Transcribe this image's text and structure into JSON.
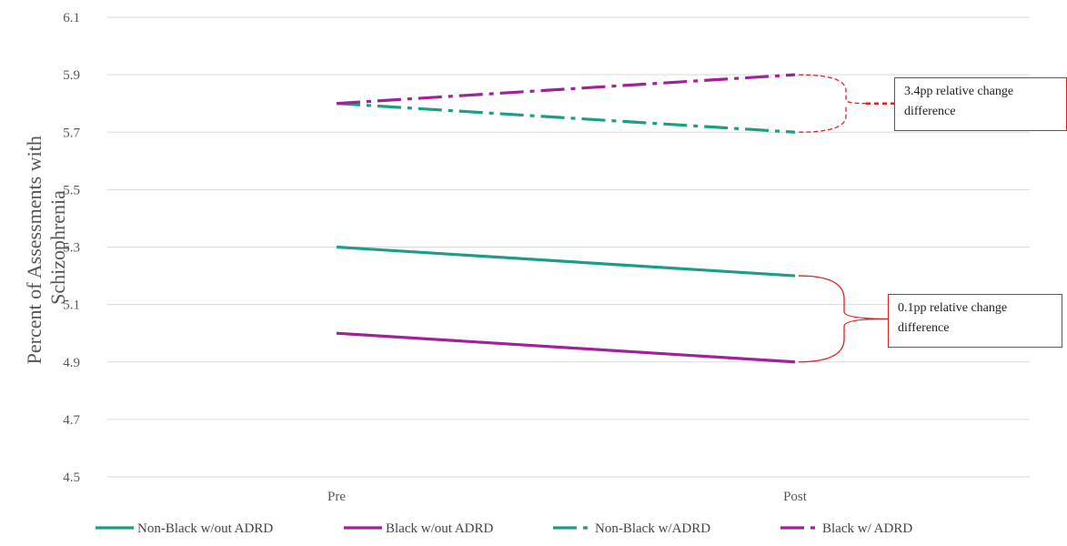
{
  "chart_data": {
    "type": "line",
    "categories": [
      "Pre",
      "Post"
    ],
    "ylabel": "Percent of Assessments with Schizophrenia",
    "ylabel_lines": [
      "Percent of Assessments with",
      "Schizophrenia"
    ],
    "ylim": [
      4.5,
      6.1
    ],
    "yticks": [
      "4.5",
      "4.7",
      "4.9",
      "5.1",
      "5.3",
      "5.5",
      "5.7",
      "5.9",
      "6.1"
    ],
    "grid": true,
    "legend_position": "bottom",
    "series": [
      {
        "name": "Non-Black w/out ADRD",
        "values": [
          5.3,
          5.2
        ],
        "color": "#1a9e86",
        "dash": "solid"
      },
      {
        "name": "Black w/out ADRD",
        "values": [
          5.0,
          4.9
        ],
        "color": "#a0219a",
        "dash": "solid"
      },
      {
        "name": "Non-Black w/ADRD",
        "values": [
          5.8,
          5.7
        ],
        "color": "#1a9e86",
        "dash": "dashdot"
      },
      {
        "name": "Black w/ ADRD",
        "values": [
          5.8,
          5.9
        ],
        "color": "#a0219a",
        "dash": "dashdot"
      }
    ],
    "annotations": [
      {
        "text": "3.4pp relative change\ndifference",
        "color": "#e02020",
        "style": "dashed",
        "brackets": [
          5.9,
          5.7
        ]
      },
      {
        "text": "0.1pp relative change\ndifference",
        "color": "#e02020",
        "style": "solid",
        "brackets": [
          5.2,
          4.9
        ]
      }
    ]
  }
}
